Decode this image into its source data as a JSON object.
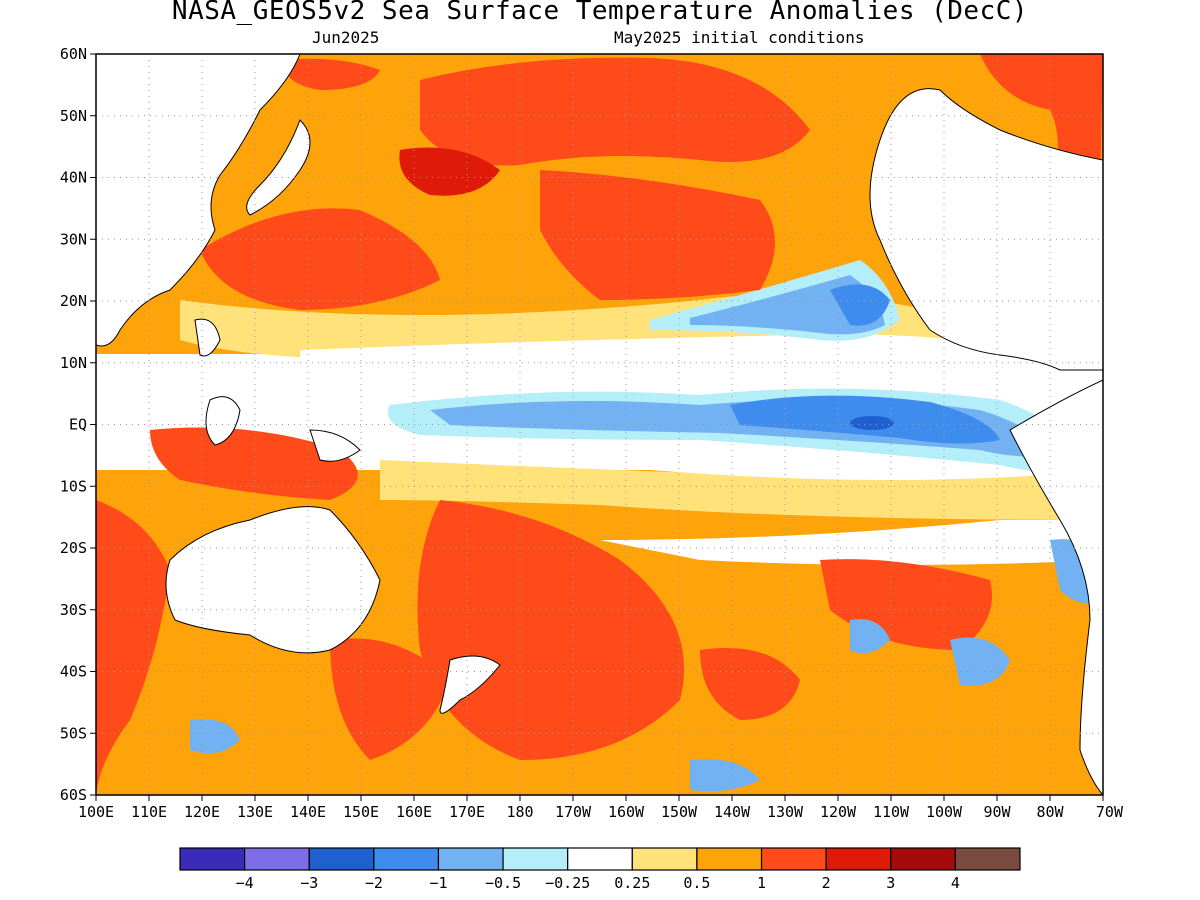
{
  "title": "NASA_GEOS5v2 Sea Surface Temperature Anomalies (DecC)",
  "subtitle_left": "Jun2025",
  "subtitle_right": "May2025 initial conditions",
  "lat_labels": [
    "60N",
    "50N",
    "40N",
    "30N",
    "20N",
    "10N",
    "EQ",
    "10S",
    "20S",
    "30S",
    "40S",
    "50S",
    "60S"
  ],
  "lon_labels": [
    "100E",
    "110E",
    "120E",
    "130E",
    "140E",
    "150E",
    "160E",
    "170E",
    "180",
    "170W",
    "160W",
    "150W",
    "140W",
    "130W",
    "120W",
    "110W",
    "100W",
    "90W",
    "80W",
    "70W"
  ],
  "colorbar": {
    "colors": [
      "#3a2bb8",
      "#7d6ee8",
      "#1f5fd0",
      "#3f8cef",
      "#72b1f2",
      "#b4eef8",
      "#ffffff",
      "#ffe27a",
      "#ffa30a",
      "#ff4a1a",
      "#e01a08",
      "#a50b0b",
      "#7a4a40"
    ],
    "labels": [
      "-4",
      "-3",
      "-2",
      "-1",
      "-0.5",
      "-0.25",
      "0.25",
      "0.5",
      "1",
      "2",
      "3",
      "4"
    ]
  },
  "chart_data": {
    "type": "heatmap",
    "title": "NASA_GEOS5v2 Sea Surface Temperature Anomalies (DecC)",
    "subtitle": [
      "Jun2025",
      "May2025 initial conditions"
    ],
    "x_range": [
      "100E",
      "70W"
    ],
    "y_range": [
      "60S",
      "60N"
    ],
    "grid": true,
    "color_levels": [
      -4,
      -3,
      -2,
      -1,
      -0.5,
      -0.25,
      0.25,
      0.5,
      1,
      2,
      3,
      4
    ]
  }
}
